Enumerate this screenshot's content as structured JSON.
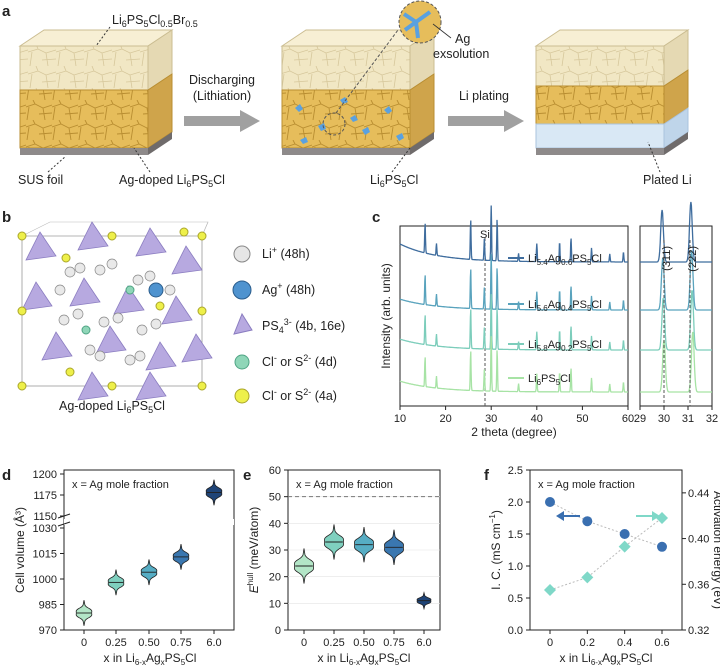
{
  "panel_labels": {
    "a": "a",
    "b": "b",
    "c": "c",
    "d": "d",
    "e": "e",
    "f": "f"
  },
  "panel_a": {
    "label_top": "Li",
    "label_top_sub1": "6",
    "label_top_mid": "PS",
    "label_top_sub2": "5",
    "label_top_mid2": "Cl",
    "label_top_sub3": "0.5",
    "label_top_mid3": "Br",
    "label_top_sub4": "0.5",
    "arrow1_line1": "Discharging",
    "arrow1_line2": "(Lithiation)",
    "arrow2": "Li plating",
    "bubble_line1": "Ag",
    "bubble_line2": "exsolution",
    "sus": "SUS foil",
    "agdoped": "Ag-doped Li",
    "agdoped_sub1": "6",
    "agdoped_mid": "PS",
    "agdoped_sub2": "5",
    "agdoped_end": "Cl",
    "lpsc": "Li",
    "lpsc_sub1": "6",
    "lpsc_mid": "PS",
    "lpsc_sub2": "5",
    "lpsc_end": "Cl",
    "plated": "Plated Li"
  },
  "panel_b": {
    "caption": "Ag-doped Li",
    "caption_sub1": "6",
    "caption_mid": "PS",
    "caption_sub2": "5",
    "caption_end": "Cl",
    "legend": [
      {
        "text": "Li",
        "sup": "+",
        "rest": " (48h)",
        "color": "#e6e6e6"
      },
      {
        "text": "Ag",
        "sup": "+",
        "rest": " (48h)",
        "color": "#4f93cf"
      },
      {
        "text": "PS",
        "sub": "4",
        "sup": "3-",
        "rest": " (4b, 16e)",
        "color": "#b7a9e0"
      },
      {
        "text": "Cl",
        "sup": "-",
        "mid": " or S",
        "sup2": "2-",
        "rest": " (4d)",
        "color": "#8fd6b8"
      },
      {
        "text": "Cl",
        "sup": "-",
        "mid": " or S",
        "sup2": "2-",
        "rest": " (4a)",
        "color": "#eef04a"
      }
    ]
  },
  "panel_c": {
    "ylabel": "Intensity (arb. units)",
    "xlabel": "2 theta (degree)",
    "si_label": "Si",
    "left_ticks": [
      "10",
      "20",
      "30",
      "40",
      "50",
      "60"
    ],
    "right_ticks": [
      "29",
      "30",
      "31",
      "32"
    ],
    "peak_labels": [
      "(311)",
      "(222)"
    ],
    "series": [
      {
        "name_pre": "Li",
        "sub1": "5.4",
        "mid": "Ag",
        "sub2": "0.6",
        "mid2": "PS",
        "sub3": "5",
        "end": "Cl",
        "color": "#3f6d9e"
      },
      {
        "name_pre": "Li",
        "sub1": "5.6",
        "mid": "Ag",
        "sub2": "0.4",
        "mid2": "PS",
        "sub3": "5",
        "end": "Cl",
        "color": "#59a3bd"
      },
      {
        "name_pre": "Li",
        "sub1": "5.8",
        "mid": "Ag",
        "sub2": "0.2",
        "mid2": "PS",
        "sub3": "5",
        "end": "Cl",
        "color": "#7ccdbb"
      },
      {
        "name_pre": "Li",
        "sub1": "6",
        "mid": "",
        "sub2": "",
        "mid2": "PS",
        "sub3": "5",
        "end": "Cl",
        "color": "#a7e3a5"
      }
    ]
  },
  "chart_data": [
    {
      "type": "violin",
      "panel": "d",
      "annotation": "x = Ag mole fraction",
      "ylabel": "Cell volume (Å³)",
      "xlabel": "x in Li6-xAgxPS5Cl",
      "categories": [
        "0",
        "0.25",
        "0.50",
        "0.75",
        "6.0"
      ],
      "medians": [
        980,
        998,
        1004,
        1013,
        1178
      ],
      "yticks_lower": [
        970,
        985,
        1000,
        1015,
        1030
      ],
      "yticks_upper": [
        1150,
        1175,
        1200
      ],
      "colors": [
        "#b3e6c7",
        "#7fd0bf",
        "#56adc4",
        "#3a77b0",
        "#1f4477"
      ]
    },
    {
      "type": "violin",
      "panel": "e",
      "annotation": "x = Ag mole fraction",
      "ylabel": "Ehull (meV/atom)",
      "xlabel": "x in Li6-xAgxPS5Cl",
      "categories": [
        "0",
        "0.25",
        "0.50",
        "0.75",
        "6.0"
      ],
      "medians": [
        24,
        33,
        32,
        31,
        11
      ],
      "yticks": [
        0,
        10,
        20,
        30,
        40,
        50,
        60
      ],
      "ylim": [
        0,
        60
      ],
      "dashed_line": 50,
      "colors": [
        "#b3e6c7",
        "#7fd0bf",
        "#56adc4",
        "#3a77b0",
        "#1f4477"
      ]
    },
    {
      "type": "scatter",
      "panel": "f",
      "annotation": "x = Ag mole fraction",
      "ylabel": "I. C. (mS cm⁻¹)",
      "y2label": "Activation energy (eV)",
      "xlabel": "x in Li6-xAgxPS5Cl",
      "x": [
        0,
        0.2,
        0.4,
        0.6
      ],
      "xticks": [
        "0",
        "0.2",
        "0.4",
        "0.6"
      ],
      "series": [
        {
          "name": "I. C.",
          "axis": "left",
          "values": [
            2.0,
            1.7,
            1.5,
            1.3
          ],
          "color": "#3a6fb0"
        },
        {
          "name": "Activation energy",
          "axis": "right",
          "values": [
            0.355,
            0.366,
            0.393,
            0.418
          ],
          "color": "#7fd8c8"
        }
      ],
      "yticks": [
        "0.0",
        "0.5",
        "1.0",
        "1.5",
        "2.0",
        "2.5"
      ],
      "y2ticks": [
        "0.32",
        "0.36",
        "0.40",
        "0.44"
      ],
      "ylim": [
        0,
        2.5
      ],
      "y2lim": [
        0.32,
        0.46
      ]
    }
  ]
}
